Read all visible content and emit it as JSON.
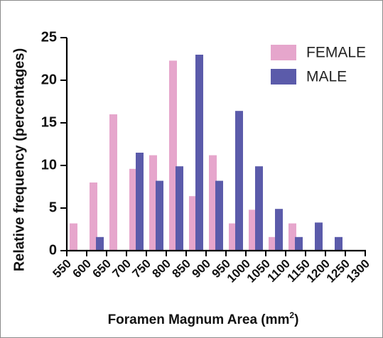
{
  "chart_data": {
    "type": "bar",
    "xlabel": "Foramen Magnum Area (mm",
    "xlabel_sup": "2",
    "xlabel_close": ")",
    "ylabel": "Relative frequency (percentages)",
    "ylim": [
      0,
      25
    ],
    "yticks": [
      "0",
      "5",
      "10",
      "15",
      "20",
      "25"
    ],
    "categories": [
      "550",
      "600",
      "650",
      "700",
      "750",
      "800",
      "850",
      "900",
      "950",
      "1000",
      "1050",
      "1100",
      "1150",
      "1200",
      "1250",
      "1300"
    ],
    "legend_position": "top-right",
    "series": [
      {
        "name": "FEMALE",
        "color": "#e6a6cc",
        "values": [
          3.2,
          8.0,
          16.0,
          9.6,
          11.2,
          22.3,
          6.4,
          11.2,
          3.2,
          4.8,
          1.6,
          3.2,
          0,
          0,
          0,
          0
        ]
      },
      {
        "name": "MALE",
        "color": "#5b5baa",
        "values": [
          0,
          1.6,
          0,
          11.5,
          8.2,
          9.9,
          23.0,
          8.2,
          16.4,
          9.9,
          4.9,
          1.6,
          3.3,
          1.6,
          0,
          0
        ]
      }
    ]
  }
}
